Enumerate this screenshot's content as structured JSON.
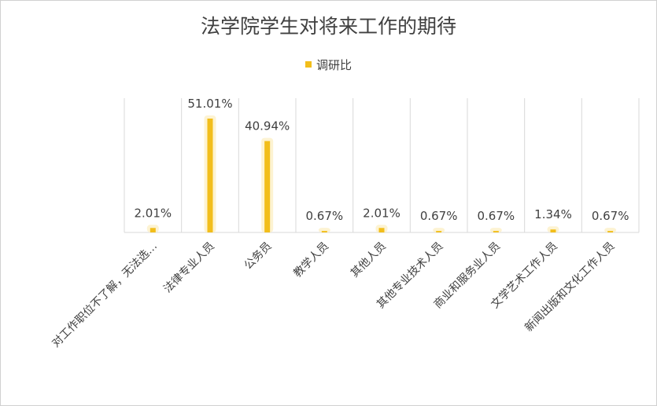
{
  "chart_data": {
    "type": "bar",
    "title": "法学院学生对将来工作的期待",
    "categories": [
      "对工作职位不了解，无法选…",
      "法律专业人员",
      "公务员",
      "教学人员",
      "其他人员",
      "其他专业技术人员",
      "商业和服务业人员",
      "文学艺术工作人员",
      "新闻出版和文化工作人员"
    ],
    "series": [
      {
        "name": "调研比",
        "values": [
          2.01,
          51.01,
          40.94,
          0.67,
          2.01,
          0.67,
          0.67,
          1.34,
          0.67
        ],
        "labels": [
          "2.01%",
          "51.01%",
          "40.94%",
          "0.67%",
          "2.01%",
          "0.67%",
          "0.67%",
          "1.34%",
          "0.67%"
        ]
      }
    ],
    "ylim": [
      0,
      60
    ],
    "grid": "vertical",
    "legend": "top",
    "colors": {
      "bar": "#F2BE1B",
      "grid": "#d9d9d9",
      "text": "#404040"
    }
  }
}
